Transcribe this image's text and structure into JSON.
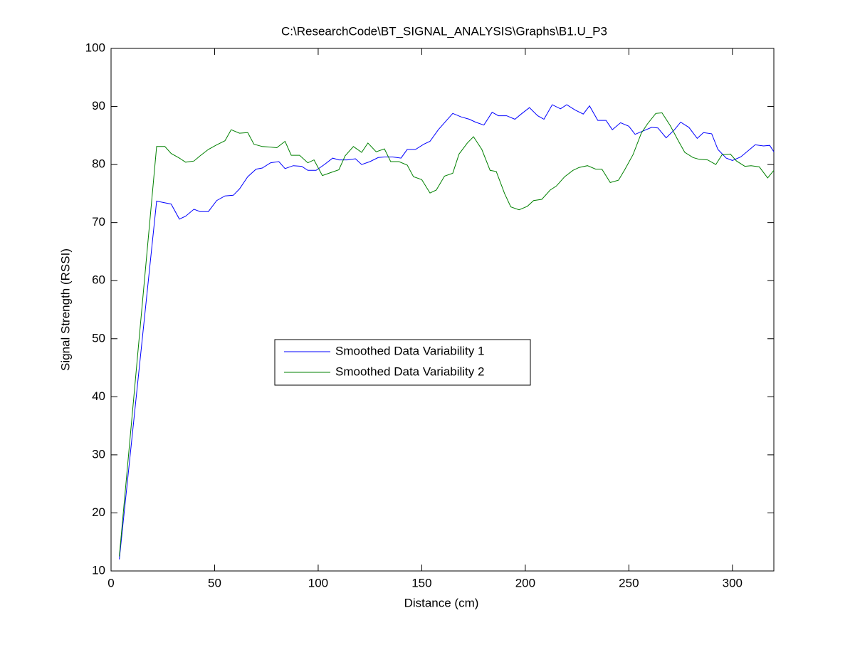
{
  "chart_data": {
    "type": "line",
    "title": "C:\\ResearchCode\\BT_SIGNAL_ANALYSIS\\Graphs\\B1.U_P3",
    "x_label": "Distance (cm)",
    "y_label": "Signal Strength (RSSI)",
    "xlim": [
      0,
      320
    ],
    "xticks": [
      0,
      50,
      100,
      150,
      200,
      250,
      300
    ],
    "ylim": [
      10,
      100
    ],
    "yticks": [
      10,
      20,
      30,
      40,
      50,
      60,
      70,
      80,
      90,
      100
    ],
    "legend_position": "center",
    "series": [
      {
        "name": "Smoothed Data Variability 1",
        "color": "#0000ff",
        "x": [
          4,
          22,
          26,
          29,
          33,
          36,
          40,
          43,
          47,
          51,
          55,
          59,
          62,
          66,
          70,
          73,
          77,
          81,
          84,
          88,
          92,
          95,
          99,
          103,
          107,
          110,
          114,
          118,
          121,
          125,
          129,
          132,
          136,
          140,
          143,
          147,
          151,
          154,
          158,
          162,
          165,
          169,
          173,
          176,
          180,
          184,
          187,
          191,
          195,
          198,
          202,
          206,
          209,
          213,
          217,
          220,
          224,
          228,
          231,
          235,
          239,
          242,
          246,
          250,
          253,
          257,
          261,
          264,
          268,
          272,
          275,
          279,
          283,
          286,
          290,
          293,
          297,
          300,
          304,
          308,
          311,
          315,
          318,
          320
        ],
        "values": [
          12,
          73.7,
          73.4,
          73.2,
          70.6,
          71.1,
          72.3,
          71.9,
          71.9,
          73.8,
          74.6,
          74.7,
          75.8,
          77.9,
          79.2,
          79.4,
          80.3,
          80.5,
          79.3,
          79.8,
          79.7,
          79,
          79,
          80,
          81.1,
          80.8,
          80.8,
          81,
          80,
          80.5,
          81.2,
          81.3,
          81.3,
          81.1,
          82.6,
          82.6,
          83.5,
          84,
          86,
          87.6,
          88.8,
          88.2,
          87.8,
          87.3,
          86.8,
          89,
          88.4,
          88.4,
          87.8,
          88.7,
          89.8,
          88.4,
          87.8,
          90.3,
          89.6,
          90.3,
          89.4,
          88.7,
          90.1,
          87.6,
          87.6,
          86,
          87.2,
          86.6,
          85.2,
          85.8,
          86.4,
          86.3,
          84.6,
          86,
          87.3,
          86.4,
          84.5,
          85.5,
          85.3,
          82.6,
          81.1,
          80.7,
          81.3,
          82.5,
          83.4,
          83.2,
          83.3,
          82.2
        ]
      },
      {
        "name": "Smoothed Data Variability 2",
        "color": "#008000",
        "x": [
          4,
          22,
          26,
          29,
          33,
          36,
          40,
          43,
          47,
          51,
          55,
          58,
          62,
          66,
          69,
          73,
          77,
          80,
          84,
          87,
          91,
          95,
          98,
          102,
          106,
          110,
          113,
          117,
          121,
          124,
          128,
          132,
          135,
          139,
          143,
          146,
          150,
          154,
          157,
          161,
          165,
          168,
          172,
          175,
          179,
          183,
          186,
          190,
          193,
          197,
          201,
          204,
          208,
          212,
          215,
          219,
          223,
          226,
          230,
          234,
          237,
          241,
          245,
          248,
          252,
          256,
          259,
          263,
          266,
          270,
          274,
          277,
          281,
          284,
          288,
          292,
          295,
          299,
          302,
          306,
          309,
          313,
          317,
          320
        ],
        "values": [
          12.5,
          83.1,
          83.1,
          81.9,
          81.1,
          80.4,
          80.6,
          81.5,
          82.6,
          83.4,
          84.1,
          86,
          85.4,
          85.5,
          83.5,
          83.1,
          83,
          82.9,
          84,
          81.6,
          81.6,
          80.3,
          80.8,
          78.1,
          78.6,
          79.1,
          81.5,
          83.1,
          82.1,
          83.7,
          82.2,
          82.7,
          80.5,
          80.5,
          79.9,
          77.9,
          77.4,
          75.1,
          75.6,
          78,
          78.5,
          81.8,
          83.7,
          84.8,
          82.6,
          79,
          78.8,
          75,
          72.7,
          72.2,
          72.8,
          73.8,
          74,
          75.6,
          76.3,
          77.9,
          79,
          79.5,
          79.8,
          79.2,
          79.2,
          76.9,
          77.3,
          79.1,
          81.7,
          85.4,
          87,
          88.8,
          88.9,
          86.7,
          84,
          82.1,
          81.2,
          80.9,
          80.8,
          80,
          81.7,
          81.8,
          80.6,
          79.7,
          79.8,
          79.6,
          77.7,
          79
        ]
      }
    ]
  }
}
